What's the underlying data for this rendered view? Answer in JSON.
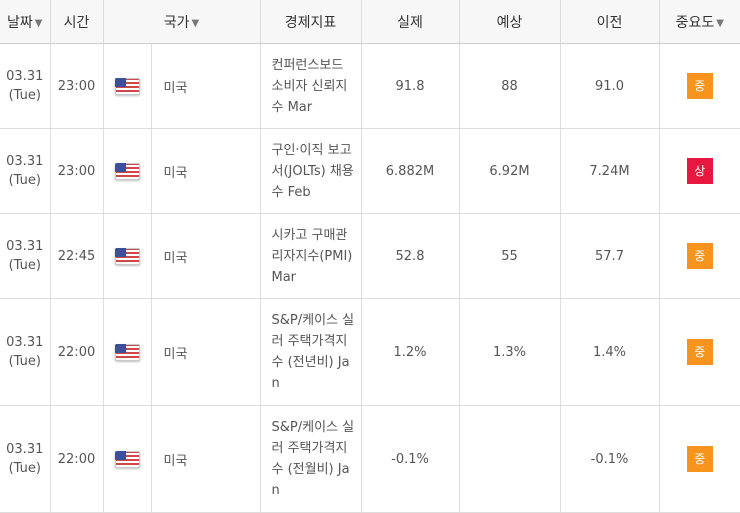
{
  "headers": {
    "date": "날짜",
    "time": "시간",
    "country": "국가",
    "indicator": "경제지표",
    "actual": "실제",
    "forecast": "예상",
    "previous": "이전",
    "importance": "중요도"
  },
  "sort_icon": "▼",
  "importance_colors": {
    "중": "#f7941d",
    "상": "#e8173f"
  },
  "rows": [
    {
      "date": "03.31",
      "day": "(Tue)",
      "time": "23:00",
      "flag_icon": "us-flag-icon",
      "country": "미국",
      "event": "컨퍼런스보드 소비자 신뢰지수 Mar",
      "actual": "91.8",
      "forecast": "88",
      "previous": "91.0",
      "importance": "중"
    },
    {
      "date": "03.31",
      "day": "(Tue)",
      "time": "23:00",
      "flag_icon": "us-flag-icon",
      "country": "미국",
      "event": "구인·이직 보고서(JOLTs) 채용수 Feb",
      "actual": "6.882M",
      "forecast": "6.92M",
      "previous": "7.24M",
      "importance": "상"
    },
    {
      "date": "03.31",
      "day": "(Tue)",
      "time": "22:45",
      "flag_icon": "us-flag-icon",
      "country": "미국",
      "event": "시카고 구매관리자지수(PMI) Mar",
      "actual": "52.8",
      "forecast": "55",
      "previous": "57.7",
      "importance": "중"
    },
    {
      "date": "03.31",
      "day": "(Tue)",
      "time": "22:00",
      "flag_icon": "us-flag-icon",
      "country": "미국",
      "event": "S&P/케이스 실러 주택가격지수 (전년비) Jan",
      "actual": "1.2%",
      "forecast": "1.3%",
      "previous": "1.4%",
      "importance": "중"
    },
    {
      "date": "03.31",
      "day": "(Tue)",
      "time": "22:00",
      "flag_icon": "us-flag-icon",
      "country": "미국",
      "event": "S&P/케이스 실러 주택가격지수 (전월비) Jan",
      "actual": "-0.1%",
      "forecast": "",
      "previous": "-0.1%",
      "importance": "중"
    }
  ]
}
